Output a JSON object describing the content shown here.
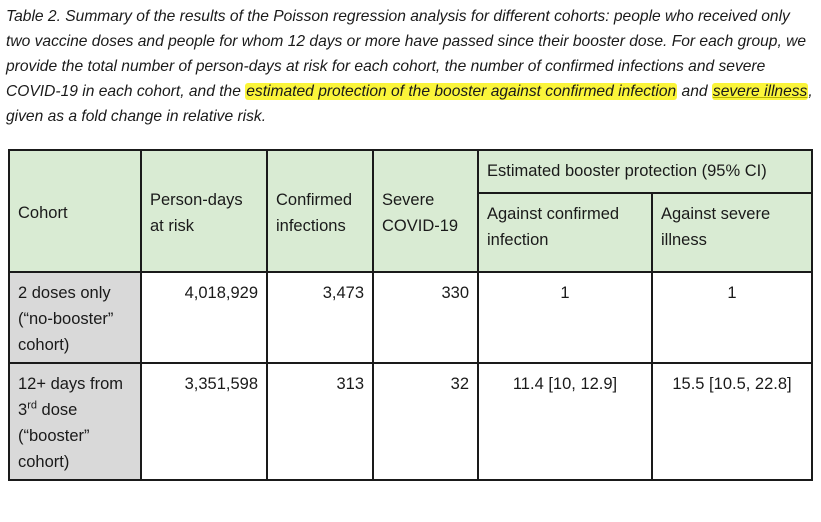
{
  "caption": {
    "part1": "Table 2. Summary of the results of the Poisson regression analysis for different cohorts: people who received only two vaccine doses and people for whom 12 days or more have passed since their booster dose. For each group, we provide the total number of person-days at risk for each cohort, the number of confirmed infections and severe COVID-19 in each cohort, and the ",
    "highlight1": "estimated protection of the booster against confirmed infection",
    "part2": " and ",
    "highlight2": "severe illness",
    "part3": ", given as a fold change in relative risk."
  },
  "table": {
    "headers": {
      "cohort": "Cohort",
      "person_days": "Person-days at risk",
      "confirmed": "Confirmed infections",
      "severe": "Severe COVID-19",
      "protection_group": "Estimated booster protection (95% CI)",
      "against_confirmed": "Against confirmed infection",
      "against_severe": "Against severe illness"
    },
    "rows": [
      {
        "cohort": "2 doses only (“no-booster” cohort)",
        "person_days": "4,018,929",
        "confirmed": "3,473",
        "severe": "330",
        "against_confirmed": "1",
        "against_severe": "1"
      },
      {
        "cohort_pre": "12+ days from 3",
        "cohort_sup": "rd",
        "cohort_post": " dose (“booster” cohort)",
        "person_days": "3,351,598",
        "confirmed": "313",
        "severe": "32",
        "against_confirmed": "11.4 [10, 12.9]",
        "against_severe": "15.5 [10.5, 22.8]"
      }
    ]
  },
  "colors": {
    "header_bg": "#d9ebd3",
    "row_header_bg": "#d9d9d9",
    "highlight": "#fbf53a"
  }
}
